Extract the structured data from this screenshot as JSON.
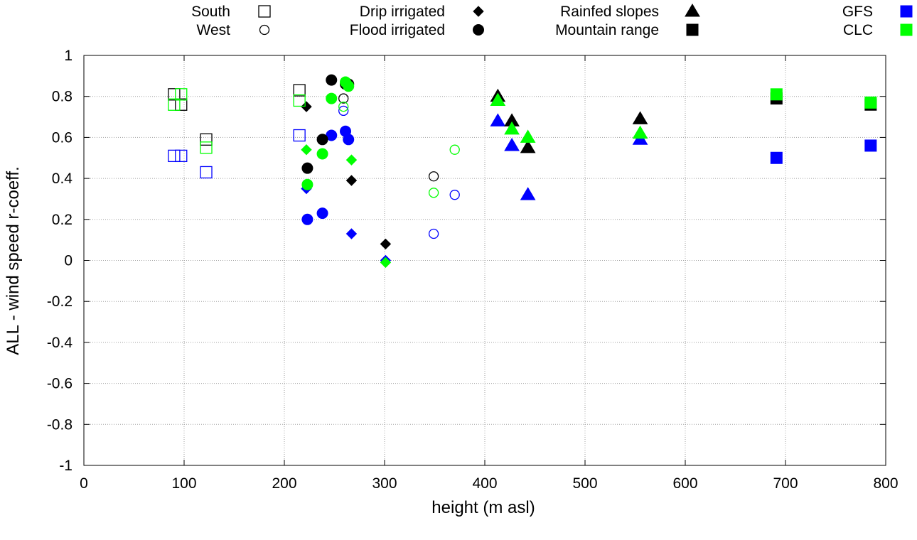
{
  "chart_data": {
    "type": "scatter",
    "xlabel": "height (m asl)",
    "ylabel": "ALL - wind speed r-coeff.",
    "xlim": [
      0,
      800
    ],
    "ylim": [
      -1,
      1
    ],
    "xticks": [
      "0",
      "100",
      "200",
      "300",
      "400",
      "500",
      "600",
      "700",
      "800"
    ],
    "yticks": [
      "-1",
      "-0.8",
      "-0.6",
      "-0.4",
      "-0.2",
      "0",
      "0.2",
      "0.4",
      "0.6",
      "0.8",
      "1"
    ],
    "grid": true,
    "legend": {
      "position": "top",
      "items": [
        {
          "label": "South",
          "marker": "square-open",
          "color": "#000000"
        },
        {
          "label": "West",
          "marker": "circle-open",
          "color": "#000000"
        },
        {
          "label": "Drip irrigated",
          "marker": "diamond",
          "color": "#000000"
        },
        {
          "label": "Flood irrigated",
          "marker": "circle",
          "color": "#000000"
        },
        {
          "label": "Rainfed slopes",
          "marker": "triangle",
          "color": "#000000"
        },
        {
          "label": "Mountain range",
          "marker": "square",
          "color": "#000000"
        },
        {
          "label": "GFS",
          "marker": "square",
          "color": "#0000ff"
        },
        {
          "label": "CLC",
          "marker": "square",
          "color": "#00ff00"
        }
      ]
    },
    "sources": [
      {
        "name": "ALL",
        "color": "#000000"
      },
      {
        "name": "GFS",
        "color": "#0000ff"
      },
      {
        "name": "CLC",
        "color": "#00ff00"
      }
    ],
    "series": [
      {
        "name": "South",
        "marker": "square-open",
        "x": [
          90,
          97,
          122,
          215
        ],
        "values": {
          "ALL": [
            0.81,
            0.76,
            0.59,
            0.83
          ],
          "GFS": [
            0.51,
            0.51,
            0.43,
            0.61
          ],
          "CLC": [
            0.76,
            0.81,
            0.55,
            0.78
          ]
        }
      },
      {
        "name": "West",
        "marker": "circle-open",
        "x": [
          259,
          349,
          370
        ],
        "values": {
          "ALL": [
            0.79,
            0.41,
            null
          ],
          "GFS": [
            0.73,
            0.13,
            0.32
          ],
          "CLC": [
            0.75,
            0.33,
            0.54
          ]
        }
      },
      {
        "name": "Drip irrigated",
        "marker": "diamond",
        "x": [
          222,
          267,
          301
        ],
        "values": {
          "ALL": [
            0.75,
            0.39,
            0.08
          ],
          "GFS": [
            0.35,
            0.13,
            0.0
          ],
          "CLC": [
            0.54,
            0.49,
            -0.01
          ]
        }
      },
      {
        "name": "Flood irrigated",
        "marker": "circle",
        "x": [
          223,
          238,
          247,
          261,
          264
        ],
        "values": {
          "ALL": [
            0.45,
            0.59,
            0.88,
            0.86,
            0.86
          ],
          "GFS": [
            0.2,
            0.23,
            0.61,
            0.63,
            0.59
          ],
          "CLC": [
            0.37,
            0.52,
            0.79,
            0.87,
            0.85
          ]
        }
      },
      {
        "name": "Rainfed slopes",
        "marker": "triangle",
        "x": [
          413,
          427,
          443,
          555
        ],
        "values": {
          "ALL": [
            0.8,
            0.68,
            0.55,
            0.69
          ],
          "GFS": [
            0.68,
            0.56,
            0.32,
            0.59
          ],
          "CLC": [
            0.78,
            0.64,
            0.6,
            0.62
          ]
        }
      },
      {
        "name": "Mountain range",
        "marker": "square",
        "x": [
          691,
          785
        ],
        "values": {
          "ALL": [
            0.79,
            0.76
          ],
          "GFS": [
            0.5,
            0.56
          ],
          "CLC": [
            0.81,
            0.77
          ]
        }
      }
    ]
  }
}
